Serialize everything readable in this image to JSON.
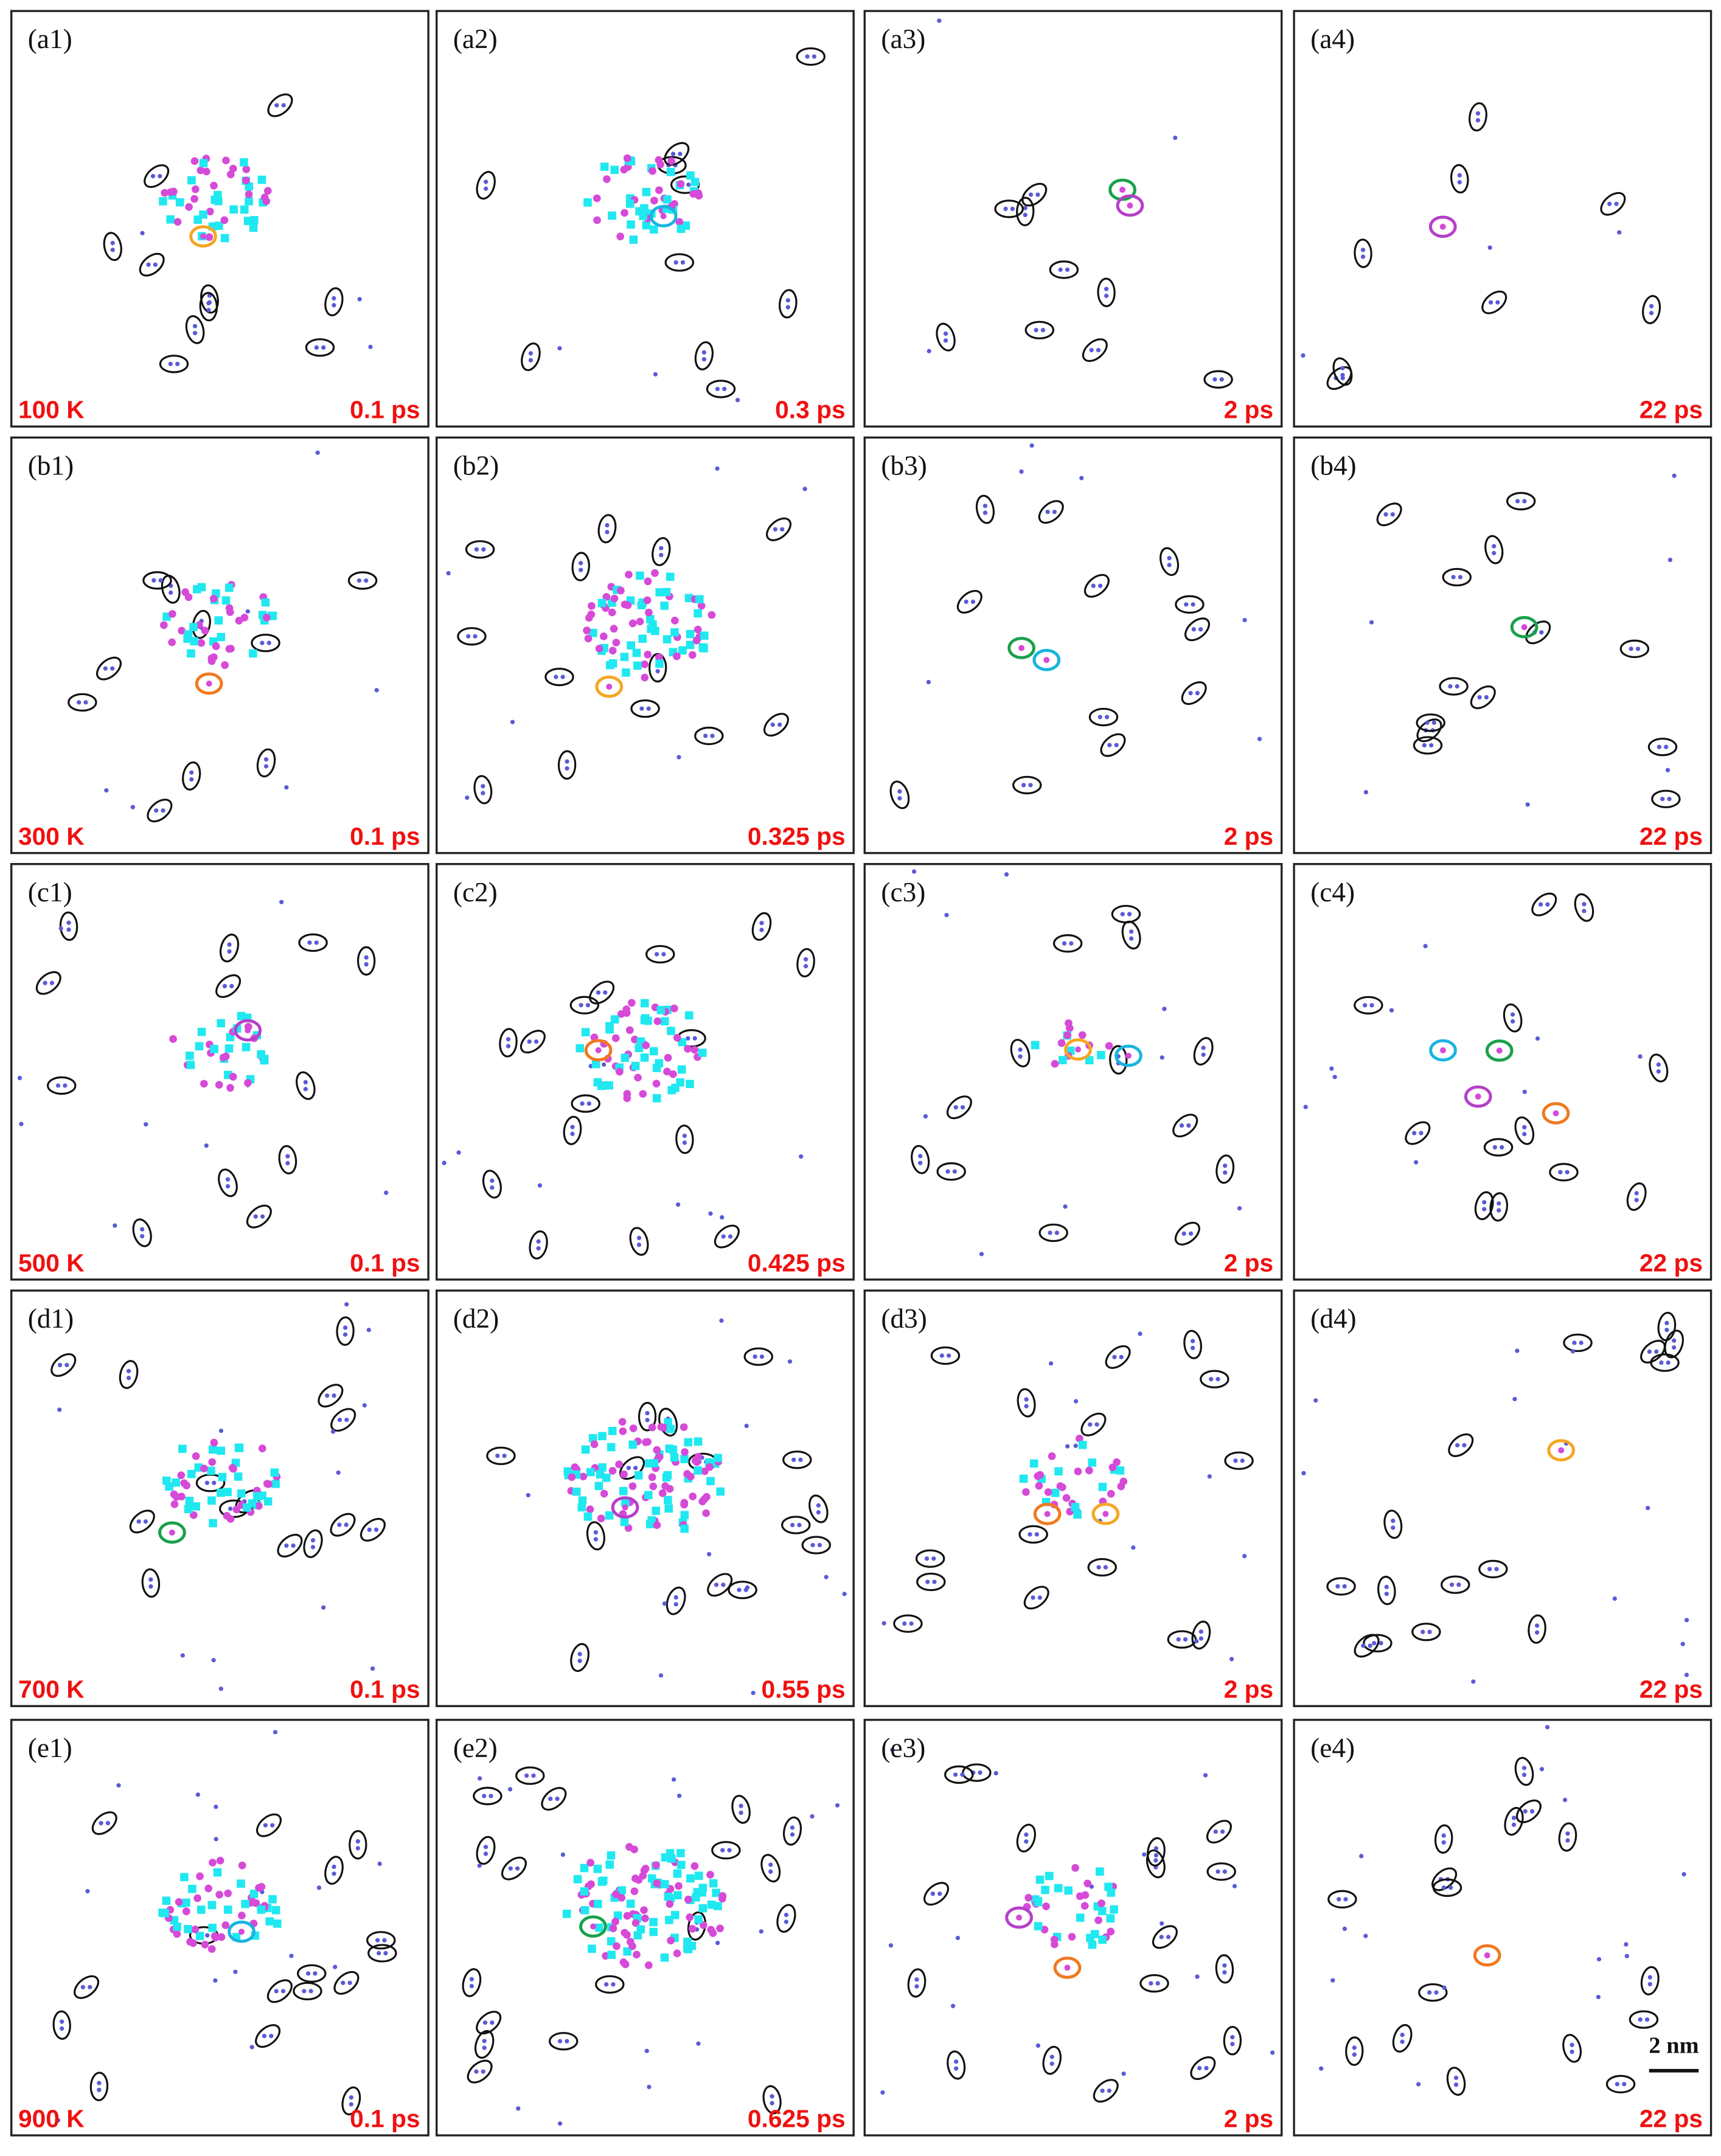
{
  "panels": [
    {
      "label": "(a1)",
      "temperature": "100 K",
      "time": "0.1 ps"
    },
    {
      "label": "(a2)",
      "time": "0.3 ps"
    },
    {
      "label": "(a3)",
      "time": "2 ps"
    },
    {
      "label": "(a4)",
      "time": "22 ps"
    },
    {
      "label": "(b1)",
      "temperature": "300 K",
      "time": "0.1 ps"
    },
    {
      "label": "(b2)",
      "time": "0.325 ps"
    },
    {
      "label": "(b3)",
      "time": "2 ps"
    },
    {
      "label": "(b4)",
      "time": "22 ps"
    },
    {
      "label": "(c1)",
      "temperature": "500 K",
      "time": "0.1 ps"
    },
    {
      "label": "(c2)",
      "time": "0.425 ps"
    },
    {
      "label": "(c3)",
      "time": "2 ps"
    },
    {
      "label": "(c4)",
      "time": "22 ps"
    },
    {
      "label": "(d1)",
      "temperature": "700 K",
      "time": "0.1 ps"
    },
    {
      "label": "(d2)",
      "time": "0.55 ps"
    },
    {
      "label": "(d3)",
      "time": "2 ps"
    },
    {
      "label": "(d4)",
      "time": "22 ps"
    },
    {
      "label": "(e1)",
      "temperature": "900 K",
      "time": "0.1 ps"
    },
    {
      "label": "(e2)",
      "time": "0.625 ps"
    },
    {
      "label": "(e3)",
      "time": "2 ps"
    },
    {
      "label": "(e4)",
      "time": "22 ps"
    }
  ],
  "scale_bar": "2 nm"
}
